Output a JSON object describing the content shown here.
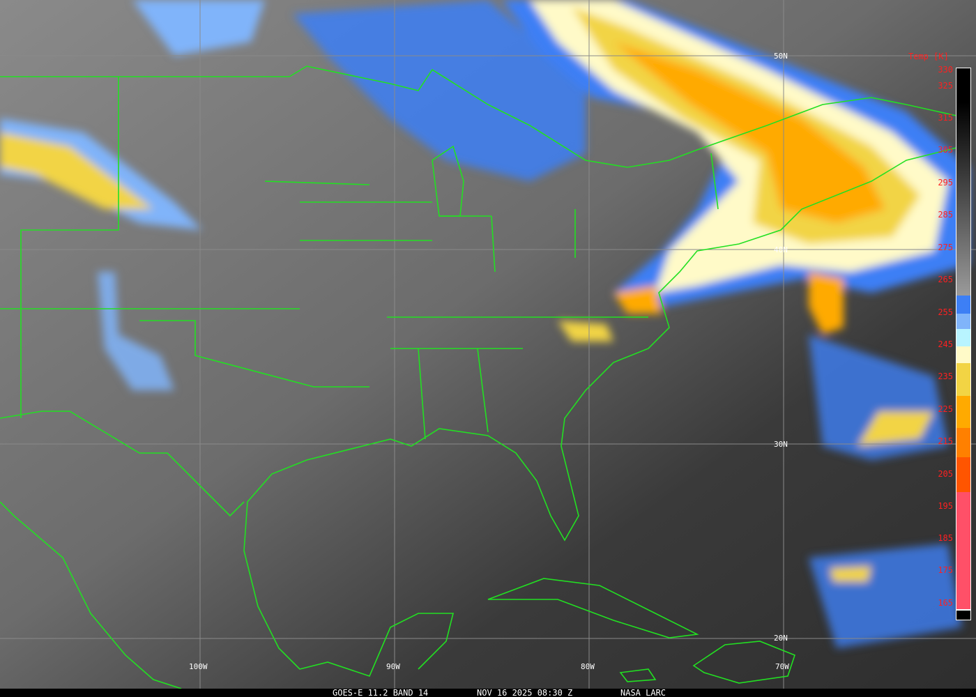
{
  "footer": {
    "product": "GOES-E 11.2 BAND 14",
    "datetime": "NOV 16 2025 08:30 Z",
    "source": "NASA LARC"
  },
  "grid": {
    "lat_labels": [
      "50N",
      "40N",
      "30N",
      "20N"
    ],
    "lon_labels": [
      "100W",
      "90W",
      "80W",
      "70W"
    ],
    "line_color": "#8a8a8a"
  },
  "boundary_color": "#22e022",
  "colorbar": {
    "title": "Temp [K]",
    "labels": [
      "330",
      "325",
      "315",
      "305",
      "295",
      "285",
      "275",
      "265",
      "255",
      "245",
      "235",
      "225",
      "215",
      "205",
      "195",
      "185",
      "175",
      "165"
    ],
    "segments": [
      {
        "from_k": 265,
        "to_k": 330,
        "color": "gradient black-to-gray"
      },
      {
        "from_k": 255,
        "to_k": 265,
        "color": "#3d7ff5"
      },
      {
        "from_k": 250,
        "to_k": 255,
        "color": "#80b4fa"
      },
      {
        "from_k": 245,
        "to_k": 250,
        "color": "#b8f4ff"
      },
      {
        "from_k": 240,
        "to_k": 245,
        "color": "#fffac8"
      },
      {
        "from_k": 230,
        "to_k": 240,
        "color": "#f2d444"
      },
      {
        "from_k": 220,
        "to_k": 230,
        "color": "#ffaa00"
      },
      {
        "from_k": 210,
        "to_k": 220,
        "color": "#ff8000"
      },
      {
        "from_k": 200,
        "to_k": 210,
        "color": "#ff5500"
      },
      {
        "from_k": 165,
        "to_k": 200,
        "color": "#ff5068"
      }
    ]
  }
}
